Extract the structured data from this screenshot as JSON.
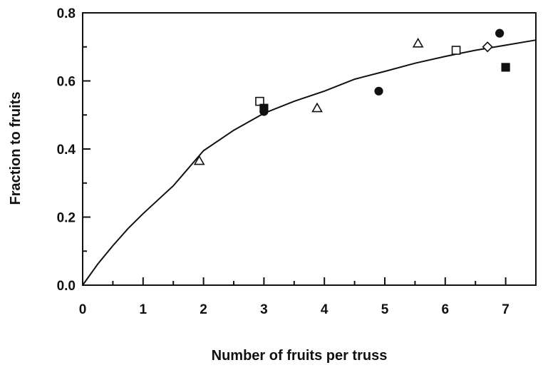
{
  "chart_data": {
    "type": "scatter",
    "title": "",
    "xlabel": "Number of fruits per truss",
    "ylabel": "Fraction to fruits",
    "xlim": [
      0,
      7.5
    ],
    "ylim": [
      0,
      0.8
    ],
    "x_ticks": [
      "0",
      "1",
      "2",
      "3",
      "4",
      "5",
      "6",
      "7"
    ],
    "y_ticks": [
      "0.0",
      "0.2",
      "0.4",
      "0.6",
      "0.8"
    ],
    "grid": false,
    "legend": "none",
    "series": [
      {
        "marker": "open-triangle",
        "points": [
          {
            "x": 1.93,
            "y": 0.365
          },
          {
            "x": 3.88,
            "y": 0.52
          },
          {
            "x": 5.55,
            "y": 0.71
          }
        ]
      },
      {
        "marker": "open-square",
        "points": [
          {
            "x": 2.93,
            "y": 0.54
          },
          {
            "x": 6.18,
            "y": 0.69
          }
        ]
      },
      {
        "marker": "filled-circle",
        "points": [
          {
            "x": 3.0,
            "y": 0.51
          },
          {
            "x": 4.9,
            "y": 0.57
          },
          {
            "x": 6.9,
            "y": 0.74
          }
        ]
      },
      {
        "marker": "filled-square",
        "points": [
          {
            "x": 3.0,
            "y": 0.52
          },
          {
            "x": 7.0,
            "y": 0.64
          }
        ]
      },
      {
        "marker": "open-diamond",
        "points": [
          {
            "x": 6.7,
            "y": 0.7
          }
        ]
      }
    ],
    "fit_curve": {
      "x": [
        0,
        0.25,
        0.5,
        0.75,
        1,
        1.5,
        2,
        2.5,
        3,
        3.5,
        4,
        4.5,
        5,
        5.5,
        6,
        6.5,
        7,
        7.5
      ],
      "y": [
        0,
        0.062,
        0.116,
        0.166,
        0.21,
        0.292,
        0.395,
        0.455,
        0.505,
        0.54,
        0.57,
        0.605,
        0.628,
        0.652,
        0.672,
        0.69,
        0.705,
        0.72
      ]
    }
  }
}
